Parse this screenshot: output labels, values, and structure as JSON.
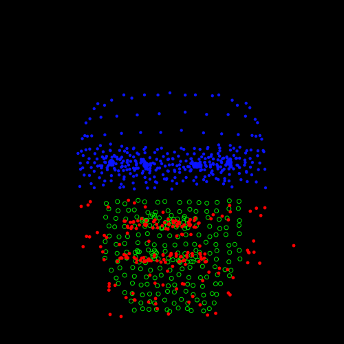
{
  "colors": {
    "background": "#000000",
    "upper_face_points": "#0a14ff",
    "lower_face_points": "#ff0000",
    "lower_face_rings": "#00e600"
  }
}
